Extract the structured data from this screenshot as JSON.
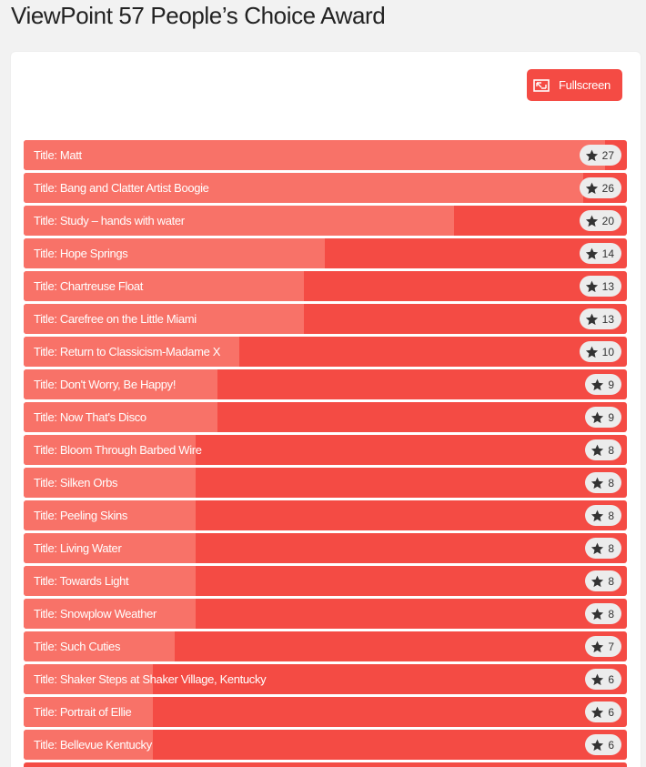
{
  "page": {
    "title": "ViewPoint 57 People’s Choice Award"
  },
  "toolbar": {
    "fullscreen_label": "Fullscreen"
  },
  "colors": {
    "accent": "#f44b44",
    "bar_fill": "#f87268",
    "bar_track": "#f44b44",
    "badge_bg": "#ececec"
  },
  "icons": {
    "fullscreen": "fullscreen-icon",
    "vote": "star-icon"
  },
  "max_votes": 27,
  "entries": [
    {
      "title": "Title: Matt",
      "votes": 27
    },
    {
      "title": "Title: Bang and Clatter Artist Boogie",
      "votes": 26
    },
    {
      "title": "Title: Study – hands with water",
      "votes": 20
    },
    {
      "title": "Title: Hope Springs",
      "votes": 14
    },
    {
      "title": "Title: Chartreuse Float",
      "votes": 13
    },
    {
      "title": "Title: Carefree on the Little Miami",
      "votes": 13
    },
    {
      "title": "Title: Return to Classicism-Madame X",
      "votes": 10
    },
    {
      "title": "Title: Don't Worry, Be Happy!",
      "votes": 9
    },
    {
      "title": "Title: Now That's Disco",
      "votes": 9
    },
    {
      "title": "Title: Bloom Through Barbed Wire",
      "votes": 8
    },
    {
      "title": "Title: Silken Orbs",
      "votes": 8
    },
    {
      "title": "Title: Peeling Skins",
      "votes": 8
    },
    {
      "title": "Title: Living Water",
      "votes": 8
    },
    {
      "title": "Title: Towards Light",
      "votes": 8
    },
    {
      "title": "Title: Snowplow Weather",
      "votes": 8
    },
    {
      "title": "Title: Such Cuties",
      "votes": 7
    },
    {
      "title": "Title: Shaker Steps at Shaker Village, Kentucky",
      "votes": 6
    },
    {
      "title": "Title: Portrait of Ellie",
      "votes": 6
    },
    {
      "title": "Title: Bellevue Kentucky",
      "votes": 6
    },
    {
      "title": "",
      "votes": null
    }
  ]
}
